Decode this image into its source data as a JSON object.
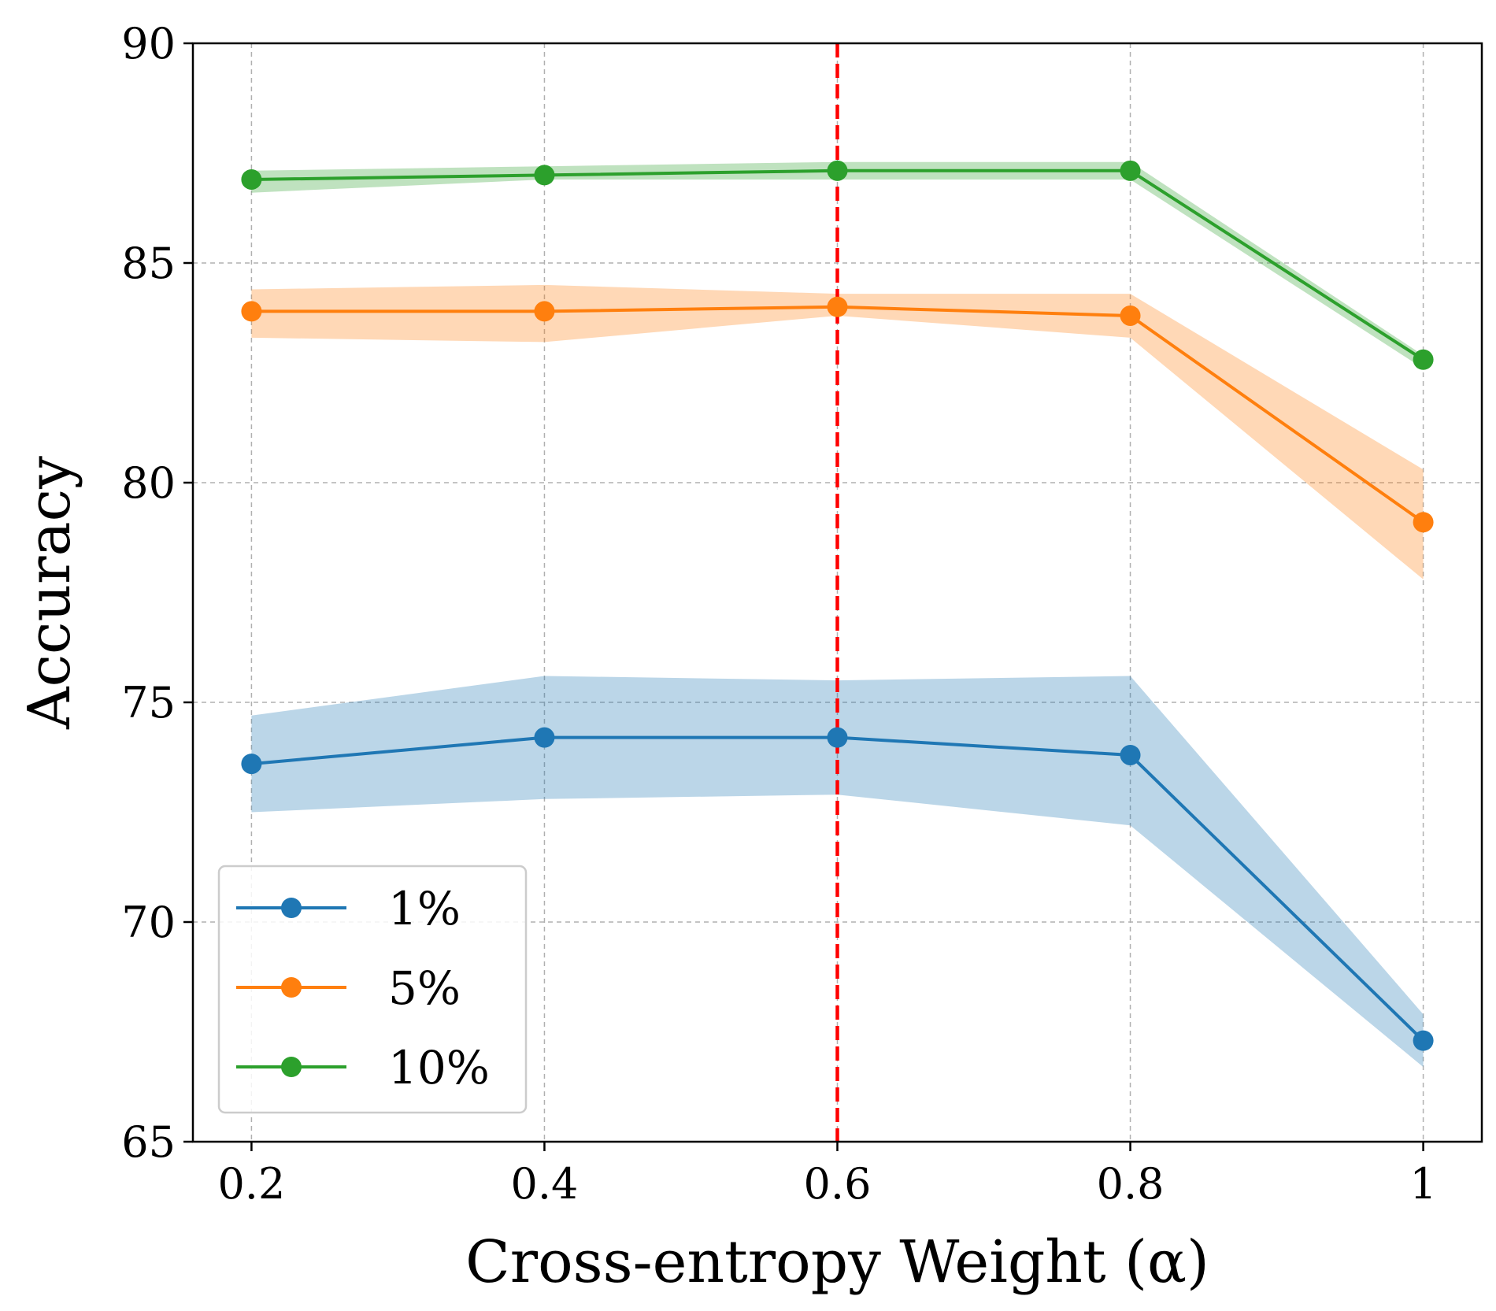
{
  "chart_data": {
    "type": "line",
    "xlabel": "Cross-entropy Weight (α)",
    "ylabel": "Accuracy",
    "x": [
      0.2,
      0.4,
      0.6,
      0.8,
      1.0
    ],
    "x_tick_labels": [
      "0.2",
      "0.4",
      "0.6",
      "0.8",
      "1"
    ],
    "xlim": [
      0.16,
      1.04
    ],
    "ylim": [
      65,
      90
    ],
    "y_ticks": [
      65,
      70,
      75,
      80,
      85,
      90
    ],
    "y_tick_labels": [
      "65",
      "70",
      "75",
      "80",
      "85",
      "90"
    ],
    "grid": true,
    "legend_position": "bottom-left",
    "reference_line": {
      "x": 0.6,
      "color": "#ff0000",
      "style": "dashed"
    },
    "series": [
      {
        "name": "1%",
        "color": "#1f77b4",
        "values": [
          73.6,
          74.2,
          74.2,
          73.8,
          67.3
        ],
        "lower": [
          72.5,
          72.8,
          72.9,
          72.2,
          66.7
        ],
        "upper": [
          74.7,
          75.6,
          75.5,
          75.6,
          67.9
        ]
      },
      {
        "name": "5%",
        "color": "#ff7f0e",
        "values": [
          83.9,
          83.9,
          84.0,
          83.8,
          79.1
        ],
        "lower": [
          83.3,
          83.2,
          83.8,
          83.3,
          77.8
        ],
        "upper": [
          84.4,
          84.5,
          84.3,
          84.3,
          80.3
        ]
      },
      {
        "name": "10%",
        "color": "#2ca02c",
        "values": [
          86.9,
          87.0,
          87.1,
          87.1,
          82.8
        ],
        "lower": [
          86.6,
          86.9,
          86.9,
          86.9,
          82.6
        ],
        "upper": [
          87.1,
          87.2,
          87.3,
          87.3,
          82.9
        ]
      }
    ]
  }
}
